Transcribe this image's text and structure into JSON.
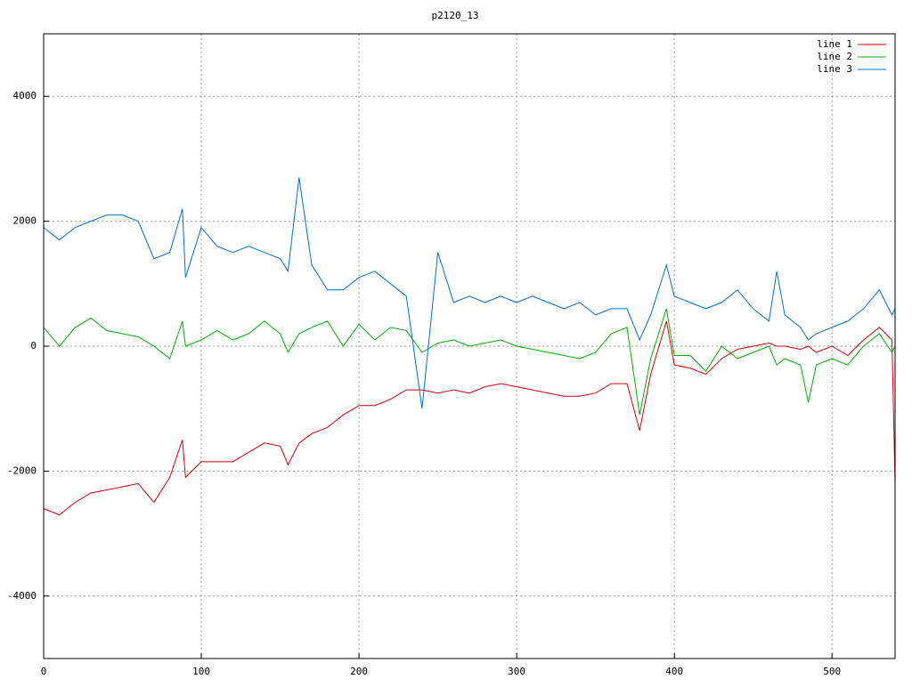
{
  "chart_data": {
    "type": "line",
    "title": "p2120_13",
    "x": [
      0,
      10,
      20,
      30,
      40,
      50,
      60,
      70,
      80,
      88,
      90,
      100,
      110,
      120,
      130,
      140,
      150,
      155,
      162,
      170,
      180,
      190,
      200,
      210,
      220,
      230,
      240,
      250,
      260,
      270,
      280,
      290,
      300,
      310,
      320,
      330,
      340,
      350,
      360,
      370,
      378,
      385,
      395,
      400,
      410,
      420,
      430,
      440,
      450,
      460,
      465,
      470,
      480,
      485,
      490,
      500,
      510,
      520,
      530,
      538,
      540
    ],
    "series": [
      {
        "name": "line 1",
        "color": "#e00000",
        "values": [
          -2600,
          -2700,
          -2500,
          -2350,
          -2300,
          -2250,
          -2200,
          -2500,
          -2100,
          -1500,
          -2100,
          -1850,
          -1850,
          -1850,
          -1700,
          -1550,
          -1600,
          -1900,
          -1550,
          -1400,
          -1300,
          -1100,
          -950,
          -950,
          -850,
          -700,
          -700,
          -750,
          -700,
          -750,
          -650,
          -600,
          -650,
          -700,
          -750,
          -800,
          -800,
          -750,
          -600,
          -600,
          -1350,
          -450,
          400,
          -300,
          -350,
          -450,
          -200,
          -50,
          0,
          50,
          0,
          0,
          -50,
          0,
          -100,
          0,
          -150,
          100,
          300,
          100,
          -2200
        ]
      },
      {
        "name": "line 2",
        "color": "#00b000",
        "values": [
          300,
          0,
          300,
          450,
          250,
          200,
          150,
          0,
          -200,
          400,
          0,
          100,
          250,
          100,
          200,
          400,
          200,
          -100,
          200,
          300,
          400,
          0,
          350,
          100,
          300,
          250,
          -100,
          50,
          100,
          0,
          50,
          100,
          0,
          -50,
          -100,
          -150,
          -200,
          -100,
          200,
          300,
          -1100,
          -200,
          600,
          -150,
          -150,
          -400,
          0,
          -200,
          -100,
          0,
          -300,
          -200,
          -300,
          -900,
          -300,
          -200,
          -300,
          0,
          200,
          -100,
          0
        ]
      },
      {
        "name": "line 3",
        "color": "#0070e0",
        "values": [
          1900,
          1700,
          1900,
          2000,
          2100,
          2100,
          2000,
          1400,
          1500,
          2200,
          1100,
          1900,
          1600,
          1500,
          1600,
          1500,
          1400,
          1200,
          2700,
          1300,
          900,
          900,
          1100,
          1200,
          1000,
          800,
          -1000,
          1500,
          700,
          800,
          700,
          800,
          700,
          800,
          700,
          600,
          700,
          500,
          600,
          600,
          100,
          500,
          1300,
          800,
          700,
          600,
          700,
          900,
          600,
          400,
          1200,
          500,
          300,
          100,
          200,
          300,
          400,
          600,
          900,
          500,
          600
        ]
      }
    ],
    "xlim": [
      0,
      540
    ],
    "ylim": [
      -5000,
      5000
    ],
    "xticks": [
      0,
      100,
      200,
      300,
      400,
      500
    ],
    "yticks": [
      -4000,
      -2000,
      0,
      2000,
      4000
    ],
    "grid": true,
    "legend": "top-right"
  }
}
